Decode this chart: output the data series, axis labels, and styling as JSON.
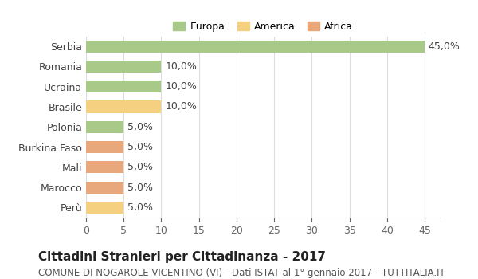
{
  "categories": [
    "Serbia",
    "Romania",
    "Ucraina",
    "Brasile",
    "Polonia",
    "Burkina Faso",
    "Mali",
    "Marocco",
    "Perù"
  ],
  "values": [
    45.0,
    10.0,
    10.0,
    10.0,
    5.0,
    5.0,
    5.0,
    5.0,
    5.0
  ],
  "bar_colors": [
    "#a8c987",
    "#a8c987",
    "#a8c987",
    "#f5d080",
    "#a8c987",
    "#e8a87c",
    "#e8a87c",
    "#e8a87c",
    "#f5d080"
  ],
  "legend_labels": [
    "Europa",
    "America",
    "Africa"
  ],
  "legend_colors": [
    "#a8c987",
    "#f5d080",
    "#e8a87c"
  ],
  "value_labels": [
    "45,0%",
    "10,0%",
    "10,0%",
    "10,0%",
    "5,0%",
    "5,0%",
    "5,0%",
    "5,0%",
    "5,0%"
  ],
  "xlim": [
    0,
    47
  ],
  "xticks": [
    0,
    5,
    10,
    15,
    20,
    25,
    30,
    35,
    40,
    45
  ],
  "title": "Cittadini Stranieri per Cittadinanza - 2017",
  "subtitle": "COMUNE DI NOGAROLE VICENTINO (VI) - Dati ISTAT al 1° gennaio 2017 - TUTTITALIA.IT",
  "background_color": "#ffffff",
  "grid_color": "#dddddd",
  "title_fontsize": 11,
  "subtitle_fontsize": 8.5,
  "tick_fontsize": 9,
  "label_fontsize": 9,
  "legend_fontsize": 9
}
